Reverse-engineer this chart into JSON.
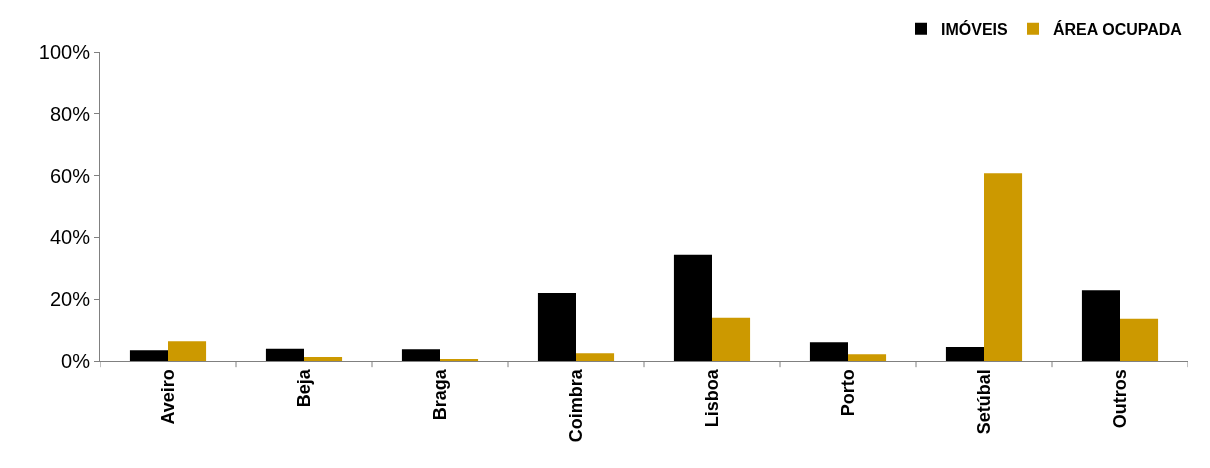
{
  "chart_data": {
    "type": "bar",
    "categories": [
      "Aveiro",
      "Beja",
      "Braga",
      "Coimbra",
      "Lisboa",
      "Porto",
      "Setúbal",
      "Outros"
    ],
    "series": [
      {
        "name": "IMÓVEIS",
        "color": "#000000",
        "values": [
          3.5,
          4,
          3.8,
          22,
          34.4,
          6.1,
          4.5,
          22.9
        ]
      },
      {
        "name": "ÁREA OCUPADA",
        "color": "#cc9900",
        "values": [
          6.4,
          1.3,
          0.6,
          2.5,
          14,
          2.2,
          60.8,
          13.7
        ]
      }
    ],
    "ylim": [
      0,
      100
    ],
    "yticks": [
      {
        "value": 0,
        "label": "0%"
      },
      {
        "value": 20,
        "label": "20%"
      },
      {
        "value": 40,
        "label": "40%"
      },
      {
        "value": 60,
        "label": "60%"
      },
      {
        "value": 80,
        "label": "80%"
      },
      {
        "value": 100,
        "label": "100%"
      }
    ],
    "legend": "top right"
  }
}
